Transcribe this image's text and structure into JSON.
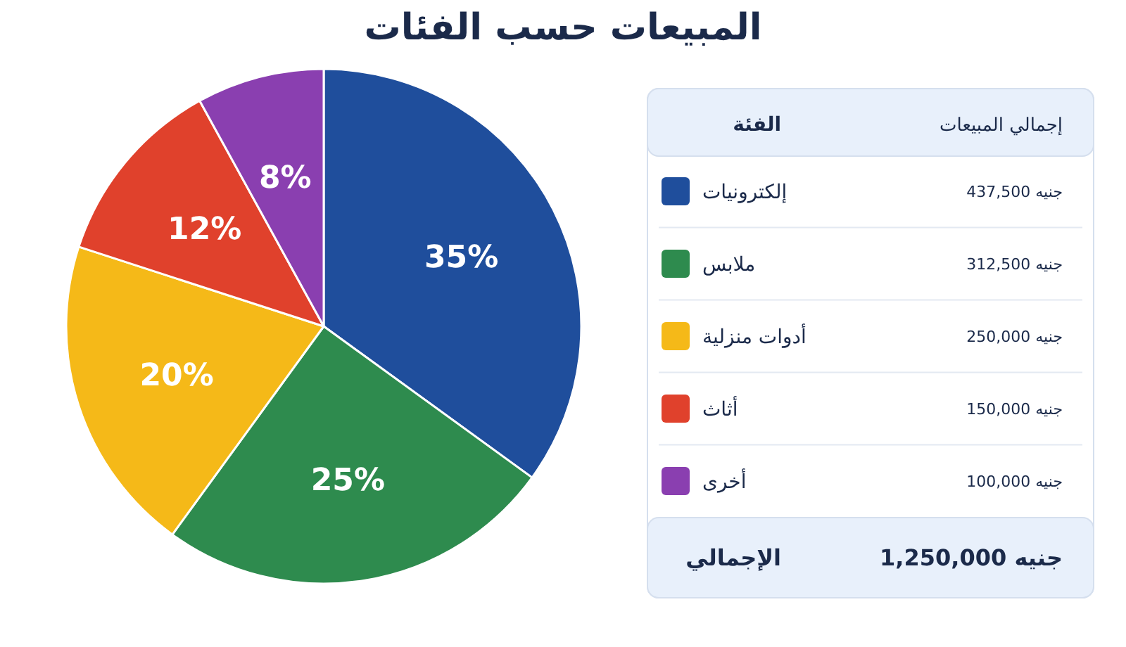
{
  "chart_data": {
    "type": "pie",
    "title": "المبيعات حسب الفئات",
    "categories": [
      "إلكترونيات",
      "ملابس",
      "أدوات منزلية",
      "أثاث",
      "أخرى"
    ],
    "values": [
      35,
      25,
      20,
      12,
      8
    ],
    "value_labels": [
      "35%",
      "25%",
      "20%",
      "12%",
      "8%"
    ],
    "colors": [
      "#1f4e9c",
      "#2e8b4e",
      "#f5b918",
      "#e0412c",
      "#8a3fb0"
    ],
    "legend": "right",
    "legend_title": "الفئة",
    "annotations": [
      "إجمالي المبيعات",
      "جنيه 437,500",
      "جنيه 312,500",
      "جنيه 250,000",
      "جنيه 150,000",
      "جنيه 100,000",
      "الإجمالي",
      "جنيه 1,250,000"
    ]
  }
}
